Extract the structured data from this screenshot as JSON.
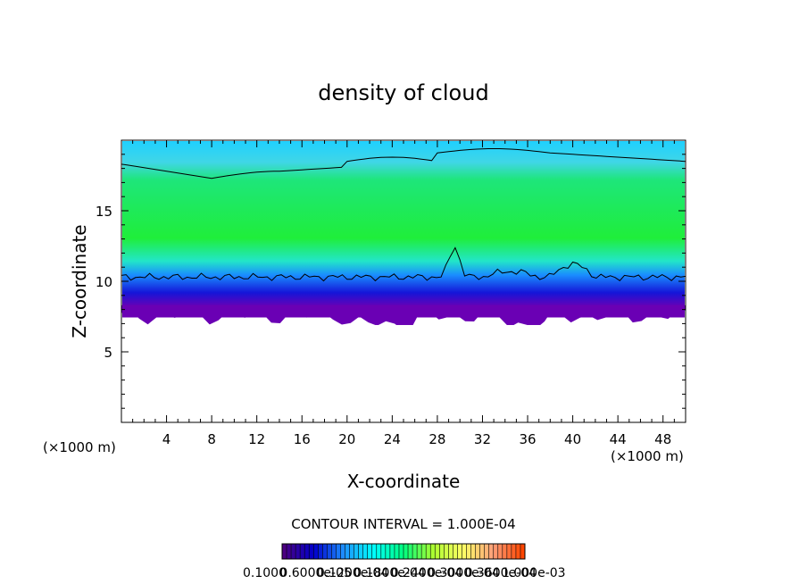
{
  "chart_data": {
    "type": "heatmap",
    "title": "density of cloud",
    "xlabel": "X-coordinate",
    "ylabel": "Z-coordinate",
    "x_unit": "(×1000 m)",
    "z_unit": "(×1000 m)",
    "xlim": [
      0,
      50
    ],
    "ylim": [
      0,
      20
    ],
    "x_ticks": [
      4,
      8,
      12,
      16,
      20,
      24,
      28,
      32,
      36,
      40,
      44,
      48
    ],
    "y_ticks": [
      5,
      10,
      15
    ],
    "contour_interval": "CONTOUR INTERVAL = 1.000E-04",
    "colorbar": {
      "labels": [
        "0.1000",
        "0.6000e-05",
        "0.1200e-04",
        "0.1800e-04",
        "0.2400e-04",
        "0.3000e-04",
        "0.3600e-04",
        "1.000e-03"
      ],
      "colors": [
        "#4b0082",
        "#0000cd",
        "#1e90ff",
        "#00ffff",
        "#00ff7f",
        "#adff2f",
        "#ffff66",
        "#ffa07a",
        "#ff4500"
      ]
    },
    "field": {
      "cloud_base_km": 7.5,
      "cloud_top_km": 19.6,
      "layers": [
        {
          "from_km": 7.4,
          "to_km": 8.0,
          "color": "#6a0dad"
        },
        {
          "from_km": 8.0,
          "to_km": 8.6,
          "color": "#1c1ccf"
        },
        {
          "from_km": 8.6,
          "to_km": 9.4,
          "color": "#1e7bff"
        },
        {
          "from_km": 9.4,
          "to_km": 10.4,
          "color": "#34c8ff"
        },
        {
          "from_km": 10.4,
          "to_km": 17.6,
          "color": "#24e96a"
        },
        {
          "from_km": 17.6,
          "to_km": 19.6,
          "color": "#5fd8f0"
        }
      ],
      "contour_lower_km": 10.3,
      "contour_upper_km": 18.2
    }
  }
}
